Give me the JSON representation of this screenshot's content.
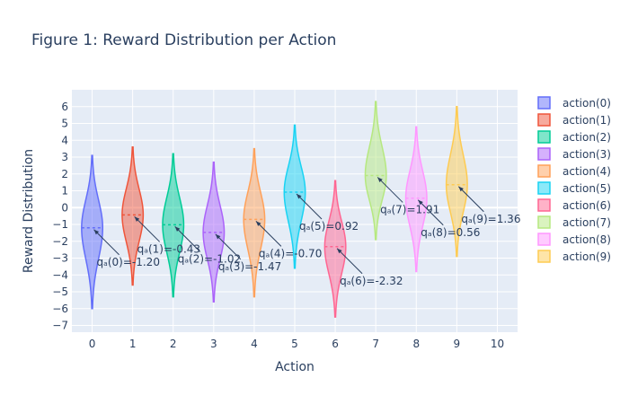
{
  "chart_data": {
    "type": "violin",
    "title": "Figure 1: Reward Distribution per Action",
    "xlabel": "Action",
    "ylabel": "Reward Distribution",
    "xlim": [
      -0.5,
      10.5
    ],
    "ylim": [
      -7.4,
      7.0
    ],
    "x_ticks": [
      0,
      1,
      2,
      3,
      4,
      5,
      6,
      7,
      8,
      9,
      10
    ],
    "y_ticks": [
      -7,
      -6,
      -5,
      -4,
      -3,
      -2,
      -1,
      0,
      1,
      2,
      3,
      4,
      5,
      6
    ],
    "grid": true,
    "legend_position": "right",
    "series": [
      {
        "name": "action(0)",
        "x": 0,
        "color": "#636efa",
        "mean": -1.2,
        "min": -6.0,
        "max": 3.1,
        "annotation": "qₐ(0)=-1.20"
      },
      {
        "name": "action(1)",
        "x": 1,
        "color": "#EF553B",
        "mean": -0.43,
        "min": -4.6,
        "max": 3.6,
        "annotation": "qₐ(1)=-0.43"
      },
      {
        "name": "action(2)",
        "x": 2,
        "color": "#00cc96",
        "mean": -1.02,
        "min": -5.3,
        "max": 3.2,
        "annotation": "qₐ(2)=-1.02"
      },
      {
        "name": "action(3)",
        "x": 3,
        "color": "#ab63fa",
        "mean": -1.47,
        "min": -5.6,
        "max": 2.7,
        "annotation": "qₐ(3)=-1.47"
      },
      {
        "name": "action(4)",
        "x": 4,
        "color": "#FFA15A",
        "mean": -0.7,
        "min": -5.3,
        "max": 3.5,
        "annotation": "qₐ(4)=-0.70"
      },
      {
        "name": "action(5)",
        "x": 5,
        "color": "#19d3f3",
        "mean": 0.92,
        "min": -3.6,
        "max": 4.9,
        "annotation": "qₐ(5)=0.92"
      },
      {
        "name": "action(6)",
        "x": 6,
        "color": "#FF6692",
        "mean": -2.32,
        "min": -6.5,
        "max": 1.6,
        "annotation": "qₐ(6)=-2.32"
      },
      {
        "name": "action(7)",
        "x": 7,
        "color": "#B6E880",
        "mean": 1.91,
        "min": -1.9,
        "max": 6.3,
        "annotation": "qₐ(7)=1.91"
      },
      {
        "name": "action(8)",
        "x": 8,
        "color": "#FF97FF",
        "mean": 0.56,
        "min": -3.8,
        "max": 4.8,
        "annotation": "qₐ(8)=0.56"
      },
      {
        "name": "action(9)",
        "x": 9,
        "color": "#FECB52",
        "mean": 1.36,
        "min": -2.9,
        "max": 6.0,
        "annotation": "qₐ(9)=1.36"
      }
    ]
  }
}
